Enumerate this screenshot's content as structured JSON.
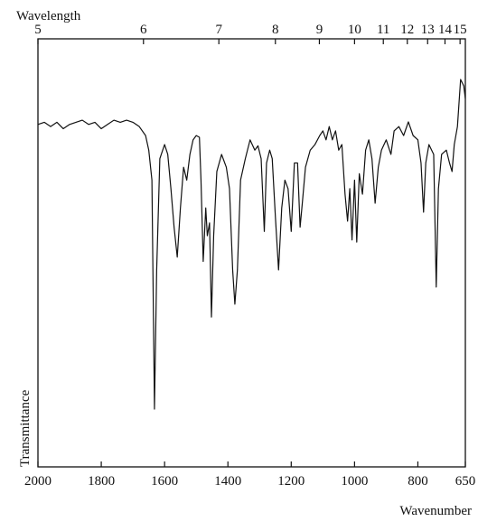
{
  "chart_data": {
    "type": "line",
    "x_label": "Wavenumber",
    "x2_label": "Wavelength",
    "y_label": "Transmittance",
    "xlim": [
      2000,
      650
    ],
    "xticks": [
      2000,
      1800,
      1600,
      1400,
      1200,
      1000,
      800,
      650
    ],
    "x2ticks": [
      {
        "value": 2000,
        "label": "5"
      },
      {
        "value": 1666.7,
        "label": "6"
      },
      {
        "value": 1428.6,
        "label": "7"
      },
      {
        "value": 1250,
        "label": "8"
      },
      {
        "value": 1111.1,
        "label": "9"
      },
      {
        "value": 1000,
        "label": "10"
      },
      {
        "value": 909.1,
        "label": "11"
      },
      {
        "value": 833.3,
        "label": "12"
      },
      {
        "value": 769.2,
        "label": "13"
      },
      {
        "value": 714.3,
        "label": "14"
      },
      {
        "value": 666.7,
        "label": "15"
      }
    ],
    "ylim": [
      0,
      100
    ],
    "color": "#111111",
    "x": [
      2000,
      1980,
      1960,
      1940,
      1920,
      1900,
      1880,
      1860,
      1840,
      1820,
      1800,
      1780,
      1760,
      1740,
      1720,
      1700,
      1680,
      1660,
      1650,
      1640,
      1632,
      1625,
      1615,
      1600,
      1590,
      1580,
      1570,
      1560,
      1550,
      1540,
      1530,
      1520,
      1510,
      1500,
      1490,
      1485,
      1478,
      1470,
      1465,
      1458,
      1452,
      1445,
      1435,
      1420,
      1405,
      1395,
      1385,
      1378,
      1370,
      1360,
      1345,
      1330,
      1315,
      1305,
      1295,
      1285,
      1278,
      1268,
      1260,
      1250,
      1240,
      1230,
      1220,
      1210,
      1200,
      1190,
      1180,
      1172,
      1165,
      1155,
      1140,
      1125,
      1110,
      1100,
      1090,
      1080,
      1070,
      1060,
      1050,
      1040,
      1030,
      1022,
      1015,
      1008,
      1000,
      993,
      985,
      975,
      965,
      955,
      945,
      935,
      925,
      915,
      900,
      885,
      875,
      860,
      845,
      830,
      815,
      800,
      790,
      782,
      775,
      765,
      750,
      742,
      735,
      725,
      710,
      700,
      692,
      685,
      675,
      665,
      655,
      650
    ],
    "values": [
      80,
      80.5,
      79.5,
      80.5,
      79,
      80,
      80.5,
      81,
      80,
      80.5,
      79,
      80,
      81,
      80.5,
      81,
      80.5,
      79.5,
      77.4,
      74,
      67,
      13.5,
      46,
      72,
      75.3,
      73,
      65,
      56,
      49,
      60.5,
      70,
      67,
      73,
      76.4,
      77.4,
      77,
      67,
      48,
      60.5,
      54,
      57,
      35,
      54,
      69,
      73,
      70,
      65,
      46,
      38,
      46,
      67,
      72,
      76.4,
      74,
      75,
      72,
      55,
      71,
      74,
      72,
      58.4,
      46,
      60.5,
      67,
      65,
      55,
      71,
      71,
      56,
      61.6,
      70,
      74,
      75.3,
      77.4,
      78.5,
      76.4,
      79.5,
      76.4,
      78.5,
      74,
      75.3,
      63.7,
      57.4,
      65,
      53,
      67,
      52.5,
      68.5,
      63.7,
      74,
      76.4,
      72,
      61.6,
      70,
      74,
      76.4,
      73,
      78.5,
      79.5,
      77.4,
      80.6,
      77.4,
      76.4,
      71,
      59.5,
      71,
      75.3,
      73,
      42,
      65,
      73,
      74,
      71,
      69,
      75.3,
      79.5,
      90.5,
      89,
      86
    ]
  }
}
